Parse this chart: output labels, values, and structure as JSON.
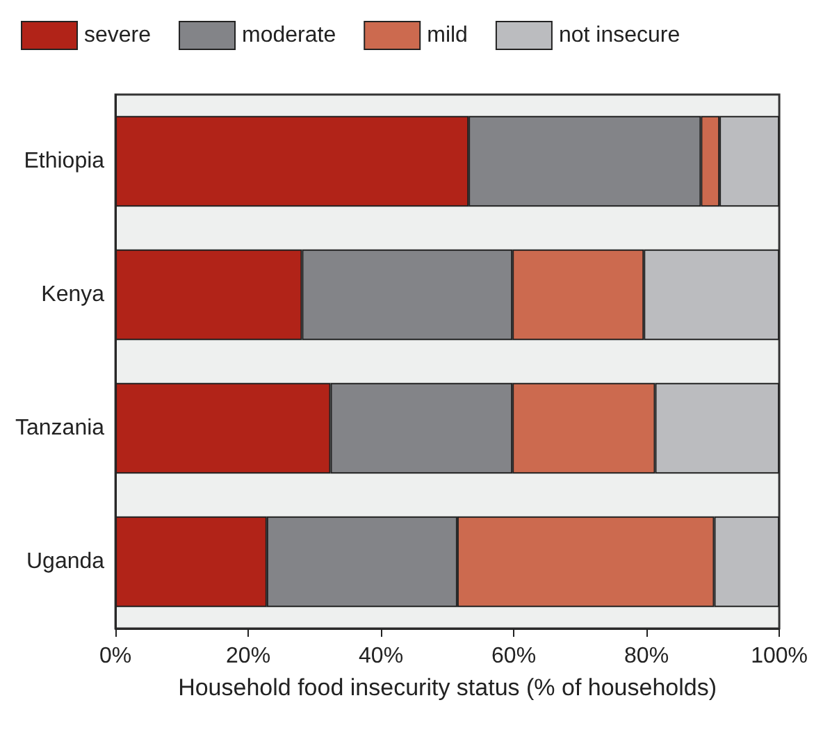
{
  "chart_data": {
    "type": "bar",
    "orientation": "horizontal",
    "stacked": true,
    "xlabel": "Household food insecurity status (% of households)",
    "categories": [
      "Ethiopia",
      "Kenya",
      "Tanzania",
      "Uganda"
    ],
    "series": [
      {
        "name": "severe",
        "color": "#b12318",
        "values": [
          53.2,
          28.1,
          32.4,
          22.8
        ]
      },
      {
        "name": "moderate",
        "color": "#838488",
        "values": [
          35.0,
          31.7,
          27.4,
          28.7
        ]
      },
      {
        "name": "mild",
        "color": "#cc6a4f",
        "values": [
          2.8,
          19.8,
          21.5,
          38.7
        ]
      },
      {
        "name": "not insecure",
        "color": "#bbbcbf",
        "values": [
          9.0,
          20.4,
          18.7,
          9.8
        ]
      }
    ],
    "xlim": [
      0,
      100
    ],
    "xticks": [
      {
        "value": 0,
        "label": "0%"
      },
      {
        "value": 20,
        "label": "20%"
      },
      {
        "value": 40,
        "label": "40%"
      },
      {
        "value": 60,
        "label": "60%"
      },
      {
        "value": 80,
        "label": "80%"
      },
      {
        "value": 100,
        "label": "100%"
      }
    ],
    "legend": "top",
    "grid": false
  }
}
